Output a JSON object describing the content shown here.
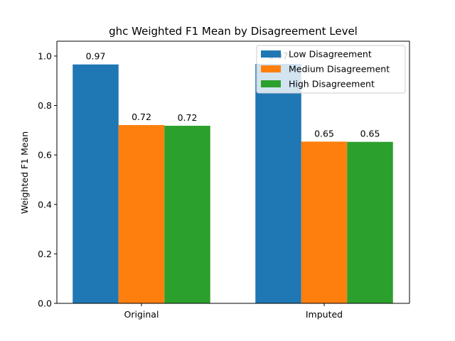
{
  "chart_data": {
    "type": "bar",
    "title": "ghc Weighted F1 Mean by Disagreement Level",
    "xlabel": "",
    "ylabel": "Weighted F1 Mean",
    "categories": [
      "Original",
      "Imputed"
    ],
    "ylim": [
      0,
      1.06
    ],
    "yticks": [
      "0.0",
      "0.2",
      "0.4",
      "0.6",
      "0.8",
      "1.0"
    ],
    "grid": false,
    "legend_position": "top-right",
    "series": [
      {
        "name": "Low Disagreement",
        "color": "#1f77b4",
        "values": [
          0.966,
          0.968
        ],
        "labels": [
          "0.97",
          "0.97"
        ]
      },
      {
        "name": "Medium Disagreement",
        "color": "#ff7f0e",
        "values": [
          0.721,
          0.654
        ],
        "labels": [
          "0.72",
          "0.65"
        ]
      },
      {
        "name": "High Disagreement",
        "color": "#2ca02c",
        "values": [
          0.718,
          0.653
        ],
        "labels": [
          "0.72",
          "0.65"
        ]
      }
    ]
  }
}
